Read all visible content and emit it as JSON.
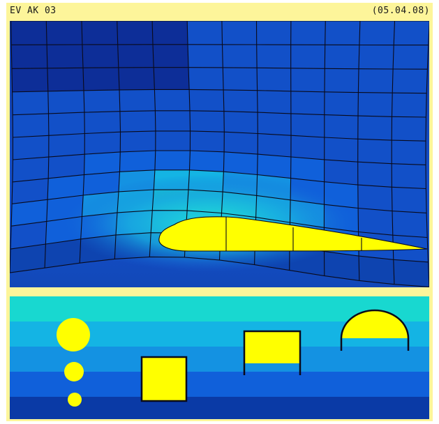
{
  "header": {
    "title": "EV AK 03",
    "date": "(05.04.08)"
  },
  "colors": {
    "frame": "#fdf59a",
    "airfoil": "#ffff00",
    "grid_line": "#0a0a1a",
    "band_colors": [
      "#18d8d0",
      "#14b4e4",
      "#1492e2",
      "#1060da",
      "#0a3aa6"
    ]
  },
  "top_panel": {
    "content": "flow-mesh-with-airfoil"
  },
  "bottom_panel": {
    "content": "shapes-in-layered-bands",
    "shapes": [
      "large-circle",
      "medium-circle",
      "small-circle",
      "filled-square",
      "half-filled-box",
      "half-filled-dome"
    ]
  }
}
